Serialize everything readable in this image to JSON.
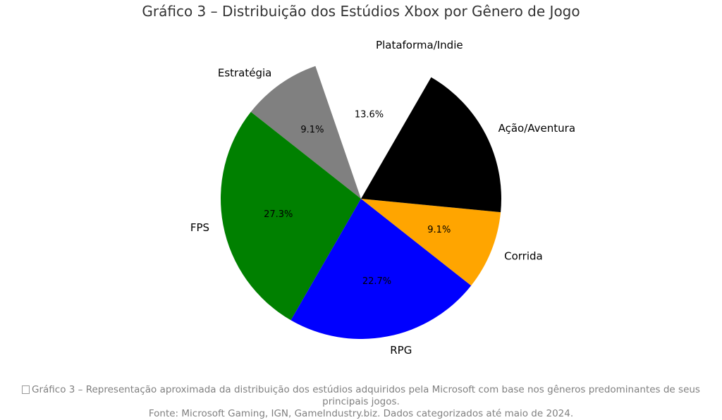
{
  "title": "Gráfico 3 – Distribuição dos Estúdios Xbox por Gênero de Jogo",
  "caption": {
    "icon": "chart-icon",
    "line1": "Gráfico 3 – Representação aproximada da distribuição dos estúdios adquiridos pela Microsoft com base nos gêneros predominantes de seus principais jogos.",
    "line2": "Fonte: Microsoft Gaming, IGN, GameIndustry.biz. Dados categorizados até maio de 2024."
  },
  "chart_data": {
    "type": "pie",
    "title": "Gráfico 3 – Distribuição dos Estúdios Xbox por Gênero de Jogo",
    "start_angle_deg": 60,
    "direction": "counterclockwise",
    "slices": [
      {
        "label": "Plataforma/Indie",
        "value": 13.6,
        "pct_label": "13.6%",
        "color": "#ffffff",
        "explode": 0.0
      },
      {
        "label": "Estratégia",
        "value": 9.1,
        "pct_label": "9.1%",
        "color": "#808080",
        "explode": 0.0
      },
      {
        "label": "FPS",
        "value": 27.3,
        "pct_label": "27.3%",
        "color": "#008000",
        "explode": 0.0
      },
      {
        "label": "RPG",
        "value": 22.7,
        "pct_label": "22.7%",
        "color": "#0000ff",
        "explode": 0.0
      },
      {
        "label": "Corrida",
        "value": 9.1,
        "pct_label": "9.1%",
        "color": "#ffa500",
        "explode": 0.0
      },
      {
        "label": "Ação/Aventura",
        "value": 18.2,
        "pct_label": "",
        "color": "#000000",
        "explode": 0.0
      }
    ]
  }
}
